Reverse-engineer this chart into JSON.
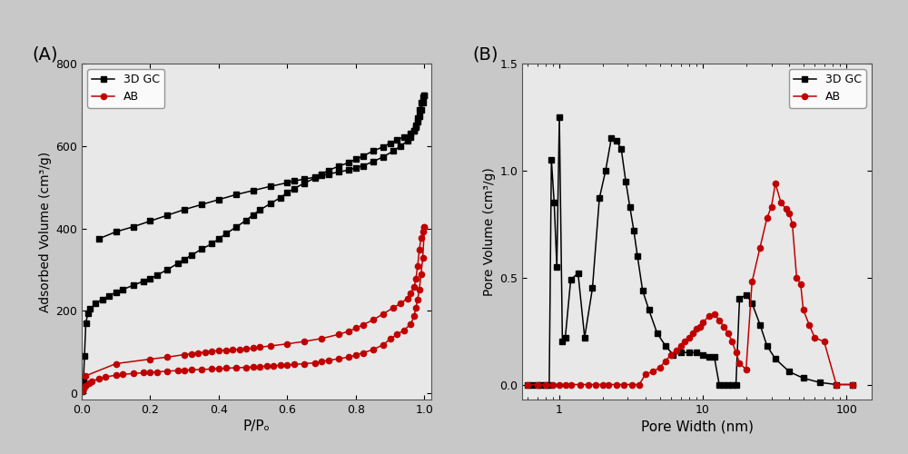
{
  "panel_A_label": "(A)",
  "panel_B_label": "(B)",
  "xlabel_A": "P/Pₒ",
  "ylabel_A": "Adsorbed Volume (cm³/g)",
  "xlabel_B": "Pore Width (nm)",
  "ylabel_B": "Pore Volume (cm³/g)",
  "legend_3DGC": "3D GC",
  "legend_AB": "AB",
  "color_3DGC": "#000000",
  "color_AB": "#c00000",
  "bg_color": "#c8c8c8",
  "axes_bg": "#e8e8e8",
  "ylim_A": [
    -15,
    800
  ],
  "xlim_A": [
    0.0,
    1.02
  ],
  "ylim_B": [
    -0.07,
    1.5
  ],
  "xlim_B_log": [
    0.55,
    150
  ],
  "GC_adsorption_x": [
    0.001,
    0.003,
    0.005,
    0.008,
    0.012,
    0.018,
    0.025,
    0.04,
    0.06,
    0.08,
    0.1,
    0.12,
    0.15,
    0.18,
    0.2,
    0.22,
    0.25,
    0.28,
    0.3,
    0.32,
    0.35,
    0.38,
    0.4,
    0.42,
    0.45,
    0.48,
    0.5,
    0.52,
    0.55,
    0.58,
    0.6,
    0.62,
    0.65,
    0.68,
    0.7,
    0.72,
    0.75,
    0.78,
    0.8,
    0.82,
    0.85,
    0.88,
    0.9,
    0.92,
    0.94,
    0.96,
    0.97,
    0.975,
    0.98,
    0.985,
    0.99,
    0.995,
    1.0
  ],
  "GC_adsorption_y": [
    5,
    10,
    30,
    90,
    170,
    195,
    205,
    218,
    228,
    237,
    245,
    252,
    262,
    272,
    278,
    287,
    300,
    315,
    325,
    335,
    350,
    363,
    375,
    387,
    403,
    420,
    433,
    445,
    460,
    475,
    487,
    497,
    510,
    522,
    532,
    541,
    551,
    560,
    568,
    575,
    588,
    598,
    607,
    615,
    622,
    630,
    636,
    645,
    658,
    672,
    688,
    706,
    722
  ],
  "GC_desorption_x": [
    1.0,
    0.995,
    0.99,
    0.985,
    0.98,
    0.975,
    0.97,
    0.96,
    0.95,
    0.93,
    0.91,
    0.88,
    0.85,
    0.82,
    0.8,
    0.78,
    0.75,
    0.72,
    0.7,
    0.68,
    0.65,
    0.62,
    0.6,
    0.55,
    0.5,
    0.45,
    0.4,
    0.35,
    0.3,
    0.25,
    0.2,
    0.15,
    0.1,
    0.05
  ],
  "GC_desorption_y": [
    722,
    718,
    705,
    688,
    668,
    650,
    638,
    622,
    612,
    600,
    588,
    574,
    562,
    552,
    547,
    542,
    537,
    532,
    528,
    524,
    520,
    515,
    511,
    502,
    492,
    482,
    470,
    458,
    446,
    432,
    418,
    404,
    392,
    375
  ],
  "AB_adsorption_x": [
    0.001,
    0.005,
    0.01,
    0.02,
    0.03,
    0.05,
    0.07,
    0.1,
    0.12,
    0.15,
    0.18,
    0.2,
    0.22,
    0.25,
    0.28,
    0.3,
    0.32,
    0.35,
    0.38,
    0.4,
    0.42,
    0.45,
    0.48,
    0.5,
    0.52,
    0.54,
    0.56,
    0.58,
    0.6,
    0.62,
    0.65,
    0.68,
    0.7,
    0.72,
    0.75,
    0.78,
    0.8,
    0.82,
    0.85,
    0.88,
    0.9,
    0.92,
    0.94,
    0.96,
    0.97,
    0.975,
    0.98,
    0.985,
    0.99,
    0.995,
    1.0
  ],
  "AB_adsorption_y": [
    5,
    12,
    18,
    25,
    30,
    35,
    40,
    44,
    46,
    48,
    50,
    51,
    52,
    54,
    55,
    56,
    57,
    58,
    59,
    60,
    61,
    62,
    63,
    64,
    65,
    66,
    67,
    68,
    69,
    70,
    72,
    74,
    77,
    80,
    84,
    88,
    93,
    98,
    106,
    118,
    132,
    143,
    153,
    168,
    188,
    208,
    228,
    252,
    288,
    328,
    403
  ],
  "AB_desorption_x": [
    1.0,
    0.995,
    0.99,
    0.985,
    0.98,
    0.975,
    0.97,
    0.96,
    0.95,
    0.93,
    0.91,
    0.88,
    0.85,
    0.82,
    0.8,
    0.78,
    0.75,
    0.7,
    0.65,
    0.6,
    0.55,
    0.52,
    0.5,
    0.48,
    0.46,
    0.44,
    0.42,
    0.4,
    0.38,
    0.36,
    0.34,
    0.32,
    0.3,
    0.25,
    0.2,
    0.1,
    0.01
  ],
  "AB_desorption_y": [
    403,
    392,
    378,
    348,
    308,
    278,
    258,
    243,
    230,
    218,
    208,
    193,
    178,
    166,
    158,
    151,
    143,
    133,
    126,
    120,
    115,
    112,
    110,
    108,
    107,
    106,
    105,
    104,
    102,
    100,
    98,
    96,
    94,
    88,
    83,
    72,
    42
  ],
  "GC_pore_x": [
    0.6,
    0.65,
    0.7,
    0.75,
    0.8,
    0.85,
    0.88,
    0.92,
    0.96,
    1.0,
    1.05,
    1.1,
    1.2,
    1.35,
    1.5,
    1.7,
    1.9,
    2.1,
    2.3,
    2.5,
    2.7,
    2.9,
    3.1,
    3.3,
    3.5,
    3.8,
    4.2,
    4.8,
    5.5,
    6.2,
    7.0,
    8.0,
    9.0,
    10.0,
    11.0,
    12.0,
    13.0,
    14.0,
    15.0,
    16.0,
    17.0,
    18.0,
    20.0,
    22.0,
    25.0,
    28.0,
    32.0,
    40.0,
    50.0,
    65.0,
    85.0,
    110.0
  ],
  "GC_pore_y": [
    0.0,
    0.0,
    0.0,
    0.0,
    0.0,
    0.0,
    1.05,
    0.85,
    0.55,
    1.25,
    0.2,
    0.22,
    0.49,
    0.52,
    0.22,
    0.45,
    0.87,
    1.0,
    1.15,
    1.14,
    1.1,
    0.95,
    0.83,
    0.72,
    0.6,
    0.44,
    0.35,
    0.24,
    0.18,
    0.14,
    0.15,
    0.15,
    0.15,
    0.14,
    0.13,
    0.13,
    0.0,
    0.0,
    0.0,
    0.0,
    0.0,
    0.4,
    0.42,
    0.38,
    0.28,
    0.18,
    0.12,
    0.06,
    0.03,
    0.01,
    0.0,
    0.0
  ],
  "AB_pore_x": [
    0.6,
    0.7,
    0.8,
    0.9,
    1.0,
    1.1,
    1.2,
    1.4,
    1.6,
    1.8,
    2.0,
    2.2,
    2.5,
    2.8,
    3.2,
    3.6,
    4.0,
    4.5,
    5.0,
    5.5,
    6.0,
    6.5,
    7.0,
    7.5,
    8.0,
    8.5,
    9.0,
    9.5,
    10.0,
    11.0,
    12.0,
    13.0,
    14.0,
    15.0,
    16.0,
    17.0,
    18.0,
    20.0,
    22.0,
    25.0,
    28.0,
    30.0,
    32.0,
    35.0,
    38.0,
    40.0,
    42.0,
    45.0,
    48.0,
    50.0,
    55.0,
    60.0,
    70.0,
    85.0,
    110.0
  ],
  "AB_pore_y": [
    0.0,
    0.0,
    0.0,
    0.0,
    0.0,
    0.0,
    0.0,
    0.0,
    0.0,
    0.0,
    0.0,
    0.0,
    0.0,
    0.0,
    0.0,
    0.0,
    0.05,
    0.06,
    0.08,
    0.11,
    0.14,
    0.16,
    0.18,
    0.2,
    0.22,
    0.24,
    0.26,
    0.27,
    0.29,
    0.32,
    0.33,
    0.3,
    0.27,
    0.24,
    0.2,
    0.15,
    0.1,
    0.07,
    0.48,
    0.64,
    0.78,
    0.83,
    0.94,
    0.85,
    0.82,
    0.8,
    0.75,
    0.5,
    0.47,
    0.35,
    0.28,
    0.22,
    0.2,
    0.0,
    0.0
  ]
}
